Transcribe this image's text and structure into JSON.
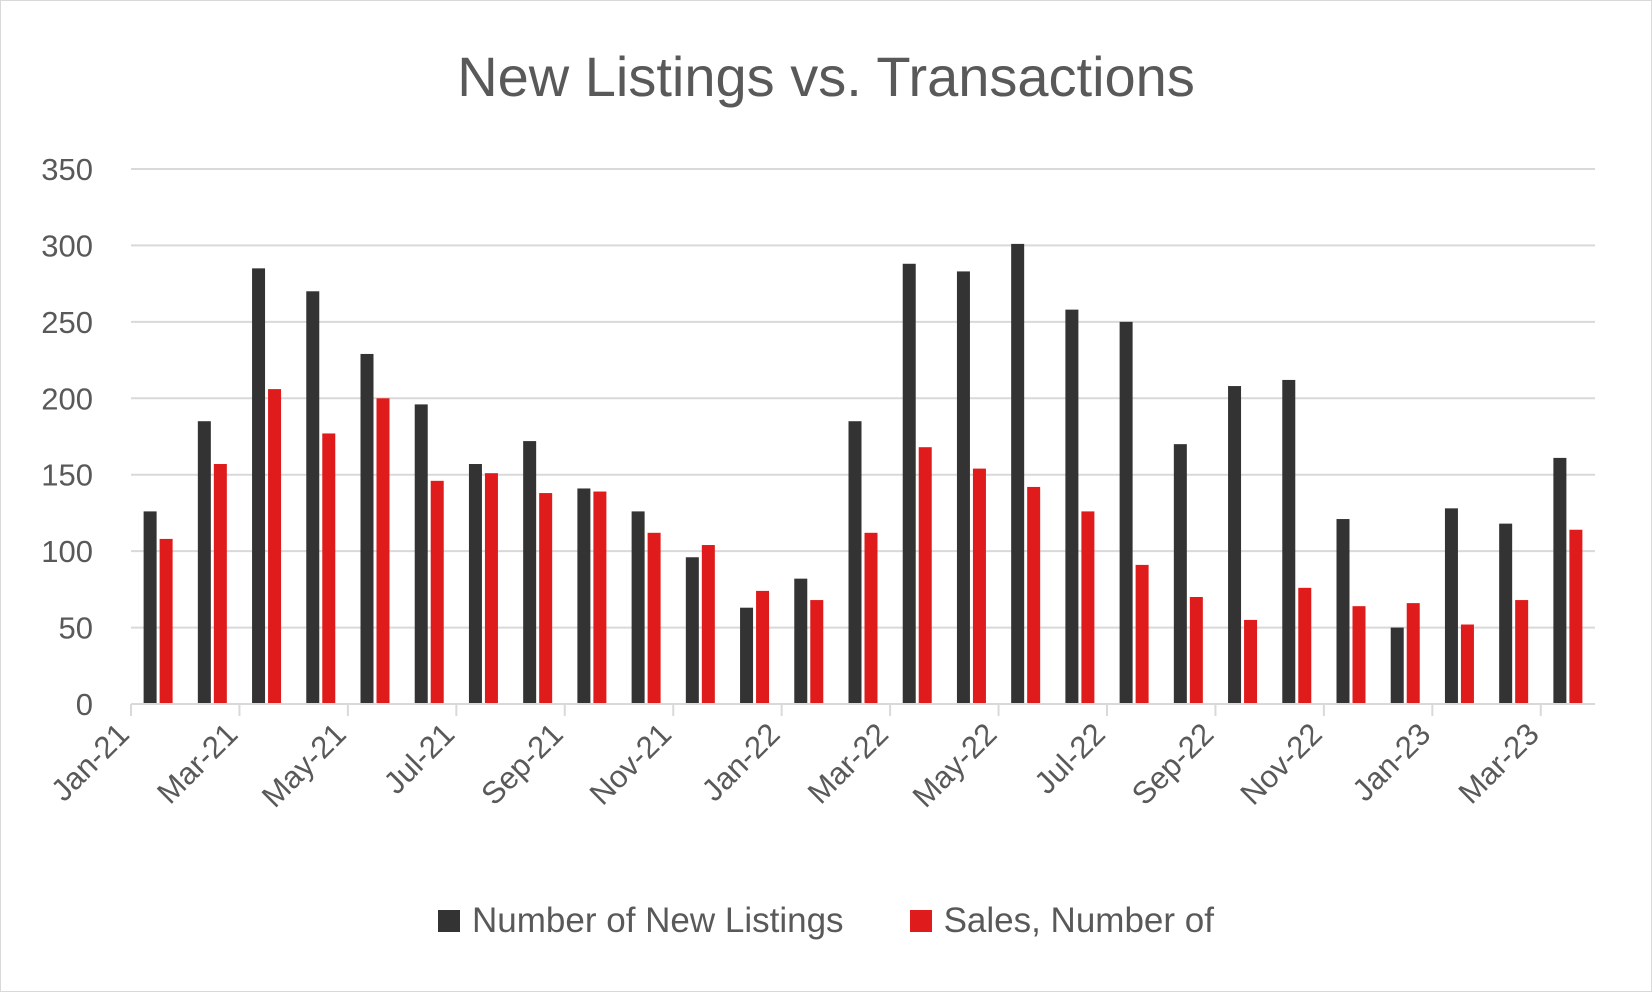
{
  "chart_data": {
    "type": "bar",
    "title": "New Listings vs. Transactions",
    "categories": [
      "Jan-21",
      "Feb-21",
      "Mar-21",
      "Apr-21",
      "May-21",
      "Jun-21",
      "Jul-21",
      "Aug-21",
      "Sep-21",
      "Oct-21",
      "Nov-21",
      "Dec-21",
      "Jan-22",
      "Feb-22",
      "Mar-22",
      "Apr-22",
      "May-22",
      "Jun-22",
      "Jul-22",
      "Aug-22",
      "Sep-22",
      "Oct-22",
      "Nov-22",
      "Dec-22",
      "Jan-23",
      "Feb-23",
      "Mar-23"
    ],
    "x_tick_labels": [
      "Jan-21",
      "Mar-21",
      "May-21",
      "Jul-21",
      "Sep-21",
      "Nov-21",
      "Jan-22",
      "Mar-22",
      "May-22",
      "Jul-22",
      "Sep-22",
      "Nov-22",
      "Jan-23",
      "Mar-23"
    ],
    "series": [
      {
        "name": "Number of New Listings",
        "color": "#333333",
        "values": [
          126,
          185,
          285,
          270,
          229,
          196,
          157,
          172,
          141,
          126,
          96,
          63,
          82,
          185,
          288,
          283,
          301,
          258,
          250,
          170,
          208,
          212,
          121,
          50,
          128,
          118,
          161
        ]
      },
      {
        "name": "Sales, Number of",
        "color": "#e01b1b",
        "values": [
          108,
          157,
          206,
          177,
          200,
          146,
          151,
          138,
          139,
          112,
          104,
          74,
          68,
          112,
          168,
          154,
          142,
          126,
          91,
          70,
          55,
          76,
          64,
          66,
          52,
          68,
          114
        ]
      }
    ],
    "ylim": [
      0,
      350
    ],
    "yticks": [
      0,
      50,
      100,
      150,
      200,
      250,
      300,
      350
    ],
    "xlabel": "",
    "ylabel": "",
    "grid": true,
    "legend_position": "bottom"
  }
}
